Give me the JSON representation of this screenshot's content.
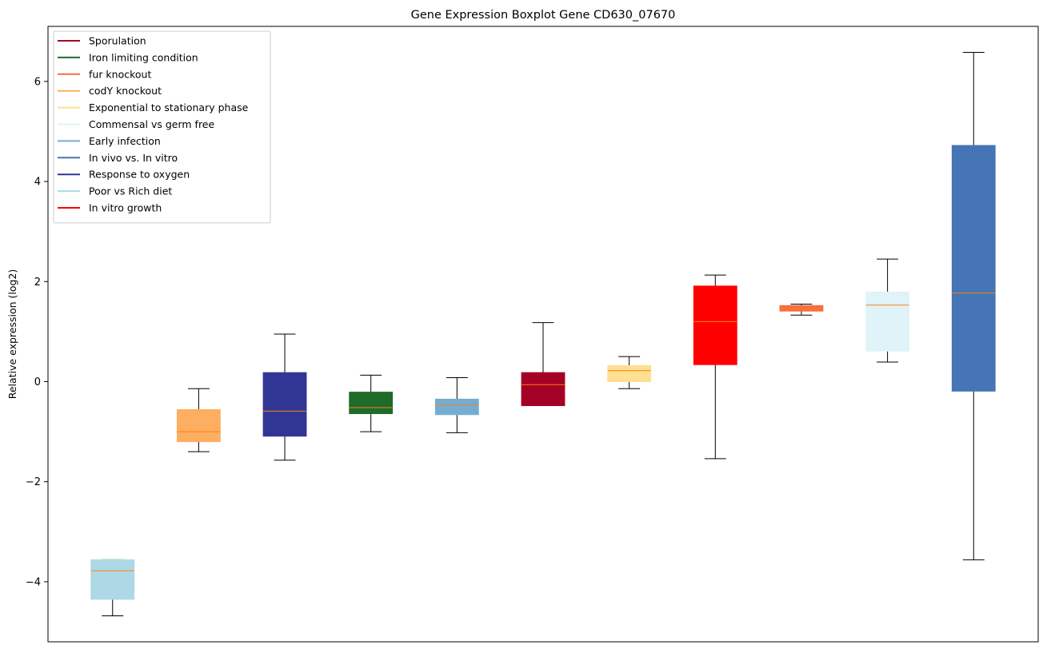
{
  "chart_data": {
    "type": "box",
    "title": "Gene Expression Boxplot Gene CD630_07670",
    "xlabel": "",
    "ylabel": "Relative expression (log2)",
    "ylim": [
      -5.2,
      7.1
    ],
    "yticks": [
      -4,
      -2,
      0,
      2,
      4,
      6
    ],
    "ytick_labels": [
      "−4",
      "−2",
      "0",
      "2",
      "4",
      "6"
    ],
    "xticks_visible": false,
    "grid": false,
    "legend_position": "top-left",
    "legend": [
      {
        "label": "Sporulation",
        "color": "#a50026"
      },
      {
        "label": "Iron limiting condition",
        "color": "#1f6b2a"
      },
      {
        "label": "fur knockout",
        "color": "#f46d43"
      },
      {
        "label": "codY knockout",
        "color": "#fdae61"
      },
      {
        "label": "Exponential to stationary phase",
        "color": "#fee090"
      },
      {
        "label": "Commensal vs germ free",
        "color": "#e0f3f8"
      },
      {
        "label": "Early infection",
        "color": "#74add1"
      },
      {
        "label": "In vivo vs. In vitro",
        "color": "#4575b4"
      },
      {
        "label": "Response to oxygen",
        "color": "#313695"
      },
      {
        "label": "Poor vs Rich diet",
        "color": "#abd9e9"
      },
      {
        "label": "In vitro growth",
        "color": "#ff0000"
      }
    ],
    "median_color": "#ff7f0e",
    "boxes": [
      {
        "condition": "Poor vs Rich diet",
        "color": "#add8e6",
        "whisker_low": -4.68,
        "q1": -4.35,
        "median": -3.78,
        "q3": -3.56,
        "whisker_high": -3.56
      },
      {
        "condition": "codY knockout",
        "color": "#fdae61",
        "whisker_low": -1.4,
        "q1": -1.2,
        "median": -1.0,
        "q3": -0.56,
        "whisker_high": -0.14
      },
      {
        "condition": "Response to oxygen",
        "color": "#313695",
        "whisker_low": -1.57,
        "q1": -1.09,
        "median": -0.59,
        "q3": 0.18,
        "whisker_high": 0.95
      },
      {
        "condition": "Iron limiting condition",
        "color": "#1f6b2a",
        "whisker_low": -1.0,
        "q1": -0.64,
        "median": -0.52,
        "q3": -0.21,
        "whisker_high": 0.13
      },
      {
        "condition": "Early infection",
        "color": "#74add1",
        "whisker_low": -1.02,
        "q1": -0.66,
        "median": -0.46,
        "q3": -0.35,
        "whisker_high": 0.08
      },
      {
        "condition": "Sporulation",
        "color": "#a50026",
        "whisker_low": -0.48,
        "q1": -0.48,
        "median": -0.06,
        "q3": 0.18,
        "whisker_high": 1.18
      },
      {
        "condition": "Exponential to stationary phase",
        "color": "#fee090",
        "whisker_low": -0.14,
        "q1": 0.0,
        "median": 0.22,
        "q3": 0.32,
        "whisker_high": 0.5
      },
      {
        "condition": "In vitro growth",
        "color": "#ff0000",
        "whisker_low": -1.54,
        "q1": 0.34,
        "median": 1.2,
        "q3": 1.91,
        "whisker_high": 2.13
      },
      {
        "condition": "fur knockout",
        "color": "#f46d43",
        "whisker_low": 1.33,
        "q1": 1.41,
        "median": 1.46,
        "q3": 1.52,
        "whisker_high": 1.55
      },
      {
        "condition": "Commensal vs germ free",
        "color": "#e0f3f8",
        "whisker_low": 0.39,
        "q1": 0.61,
        "median": 1.53,
        "q3": 1.79,
        "whisker_high": 2.45
      },
      {
        "condition": "In vivo vs. In vitro",
        "color": "#4575b4",
        "whisker_low": -3.56,
        "q1": -0.19,
        "median": 1.77,
        "q3": 4.72,
        "whisker_high": 6.58
      }
    ]
  }
}
